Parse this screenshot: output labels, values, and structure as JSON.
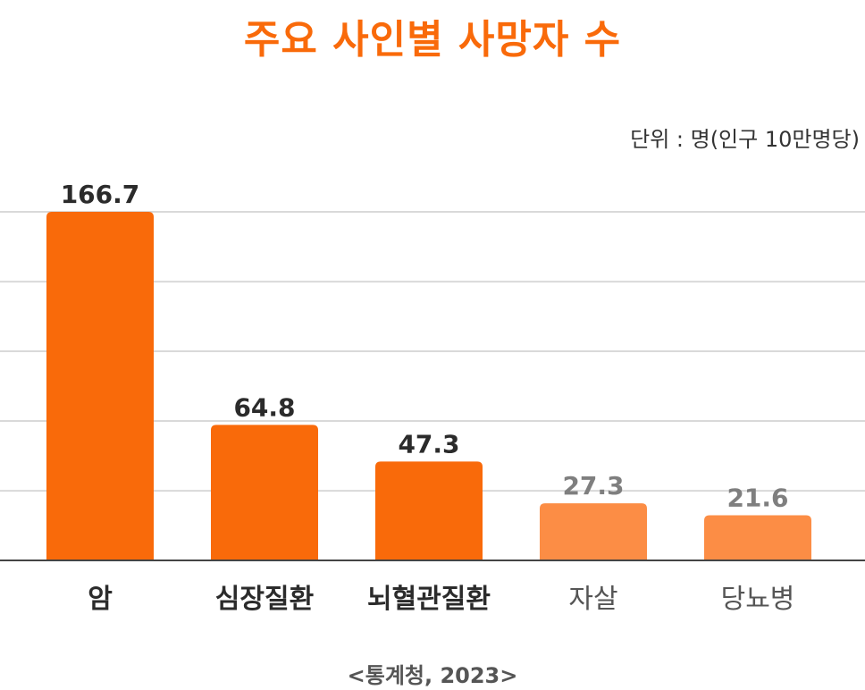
{
  "title": "주요 사인별 사망자 수",
  "unit_note": "단위 : 명(인구 10만명당)",
  "source": "<통계청, 2023>",
  "colors": {
    "title": "#f96a0a",
    "bar_primary": "#f96a0a",
    "bar_secondary": "#fc8d45",
    "label_primary": "#2b2b2b",
    "label_secondary": "#7f7f7f",
    "grid": "#d9d9d9",
    "axis": "#444444"
  },
  "chart_data": {
    "type": "bar",
    "categories": [
      "암",
      "심장질환",
      "뇌혈관질환",
      "자살",
      "당뇨병"
    ],
    "values": [
      166.7,
      64.8,
      47.3,
      27.3,
      21.6
    ],
    "highlight": [
      true,
      true,
      true,
      false,
      false
    ],
    "data_labels": [
      "166.7",
      "64.8",
      "47.3",
      "27.3",
      "21.6"
    ],
    "ylim": [
      0,
      166.7
    ],
    "grid": true,
    "ticks": [
      33.3,
      66.7,
      100,
      133.3,
      166.7
    ]
  }
}
